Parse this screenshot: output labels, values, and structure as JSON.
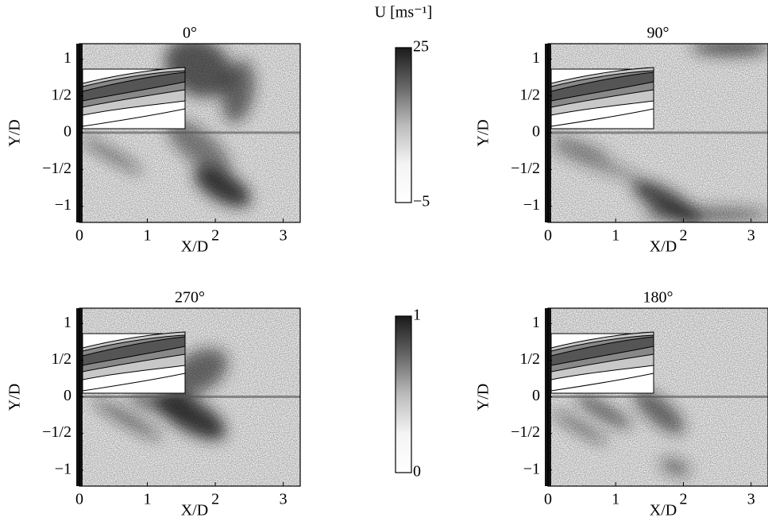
{
  "chart_data": [
    {
      "type": "image",
      "title": "0°",
      "xlabel": "X/D",
      "ylabel": "Y/D",
      "xlim": [
        0,
        3.25
      ],
      "ylim": [
        -1.22,
        1.21
      ],
      "xticks": [
        0,
        1,
        2,
        3
      ],
      "yticks": [
        {
          "value": -1,
          "label": "−1"
        },
        {
          "value": -0.5,
          "label": "−1/2"
        },
        0,
        {
          "value": 0.5,
          "label": "1/2"
        },
        1
      ]
    },
    {
      "type": "image",
      "title": "90°",
      "xlabel": "X/D",
      "ylabel": "Y/D",
      "xlim": [
        0,
        3.25
      ],
      "ylim": [
        -1.22,
        1.21
      ],
      "xticks": [
        0,
        1,
        2,
        3
      ],
      "yticks": [
        {
          "value": -1,
          "label": "−1"
        },
        {
          "value": -0.5,
          "label": "−1/2"
        },
        0,
        {
          "value": 0.5,
          "label": "1/2"
        },
        1
      ]
    },
    {
      "type": "image",
      "title": "270°",
      "xlabel": "X/D",
      "ylabel": "Y/D",
      "xlim": [
        0,
        3.25
      ],
      "ylim": [
        -1.22,
        1.21
      ],
      "xticks": [
        0,
        1,
        2,
        3
      ],
      "yticks": [
        {
          "value": -1,
          "label": "−1"
        },
        {
          "value": -0.5,
          "label": "−1/2"
        },
        0,
        {
          "value": 0.5,
          "label": "1/2"
        },
        1
      ]
    },
    {
      "type": "image",
      "title": "180°",
      "xlabel": "X/D",
      "ylabel": "Y/D",
      "xlim": [
        0,
        3.25
      ],
      "ylim": [
        -1.22,
        1.21
      ],
      "xticks": [
        0,
        1,
        2,
        3
      ],
      "yticks": [
        {
          "value": -1,
          "label": "−1"
        },
        {
          "value": -0.5,
          "label": "−1/2"
        },
        0,
        {
          "value": 0.5,
          "label": "1/2"
        },
        1
      ]
    },
    {
      "type": "colorbar",
      "title": "U [ms⁻¹]",
      "ylim": [
        -5,
        25
      ],
      "yticks": [
        {
          "value": -5,
          "label": "−5"
        },
        25
      ]
    },
    {
      "type": "colorbar",
      "ylim": [
        0,
        1
      ],
      "yticks": [
        0,
        1
      ]
    }
  ]
}
